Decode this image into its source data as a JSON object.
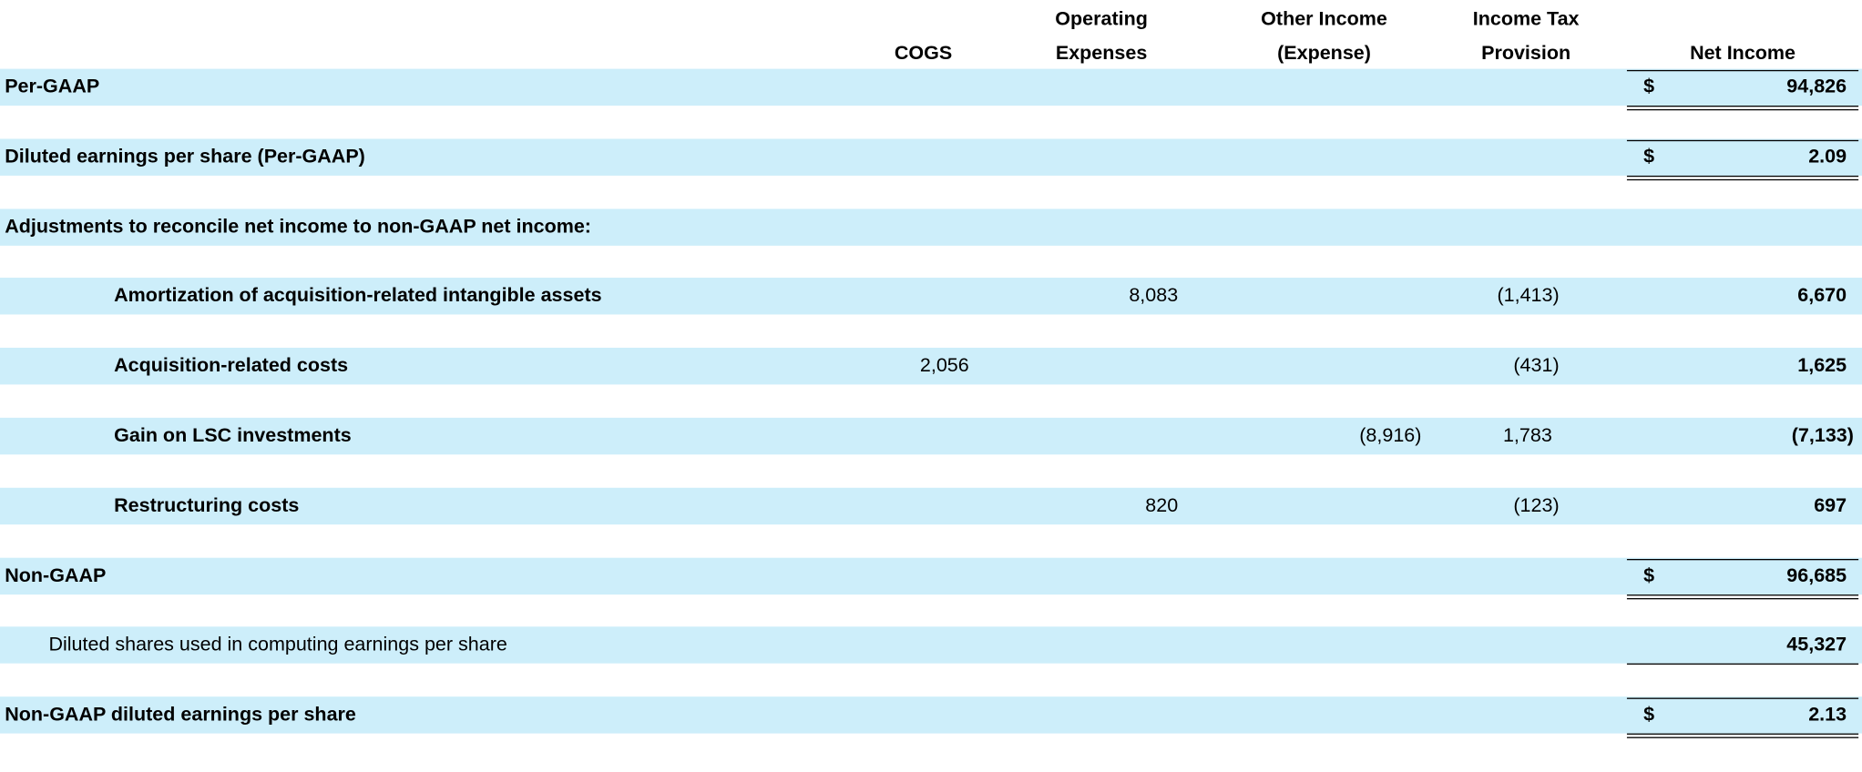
{
  "table": {
    "columns": [
      {
        "key": "cogs",
        "label": [
          "COGS"
        ]
      },
      {
        "key": "opex",
        "label": [
          "Operating",
          "Expenses"
        ]
      },
      {
        "key": "other",
        "label": [
          "Other Income",
          "(Expense)"
        ]
      },
      {
        "key": "tax",
        "label": [
          "Income Tax",
          "Provision"
        ]
      },
      {
        "key": "net",
        "label": [
          "Net Income"
        ]
      }
    ],
    "rows": [
      {
        "label": "Per-GAAP",
        "currency": "$",
        "net": "94,826"
      },
      {
        "label": "Diluted earnings per share (Per-GAAP)",
        "currency": "$",
        "net": "2.09"
      },
      {
        "label": "Adjustments to reconcile net income to non-GAAP net income:"
      },
      {
        "label": "Amortization of acquisition-related intangible assets",
        "opex": "8,083",
        "tax": "(1,413)",
        "net": "6,670"
      },
      {
        "label": "Acquisition-related costs",
        "cogs": "2,056",
        "tax": "(431)",
        "net": "1,625"
      },
      {
        "label": "Gain on LSC investments",
        "other": "(8,916)",
        "tax": "1,783",
        "net": "(7,133)"
      },
      {
        "label": "Restructuring costs",
        "opex": "820",
        "tax": "(123)",
        "net": "697"
      },
      {
        "label": "Non-GAAP",
        "currency": "$",
        "net": "96,685"
      },
      {
        "label": "Diluted shares used in computing earnings per share",
        "net": "45,327"
      },
      {
        "label": "Non-GAAP diluted earnings per share",
        "currency": "$",
        "net": "2.13"
      }
    ]
  }
}
